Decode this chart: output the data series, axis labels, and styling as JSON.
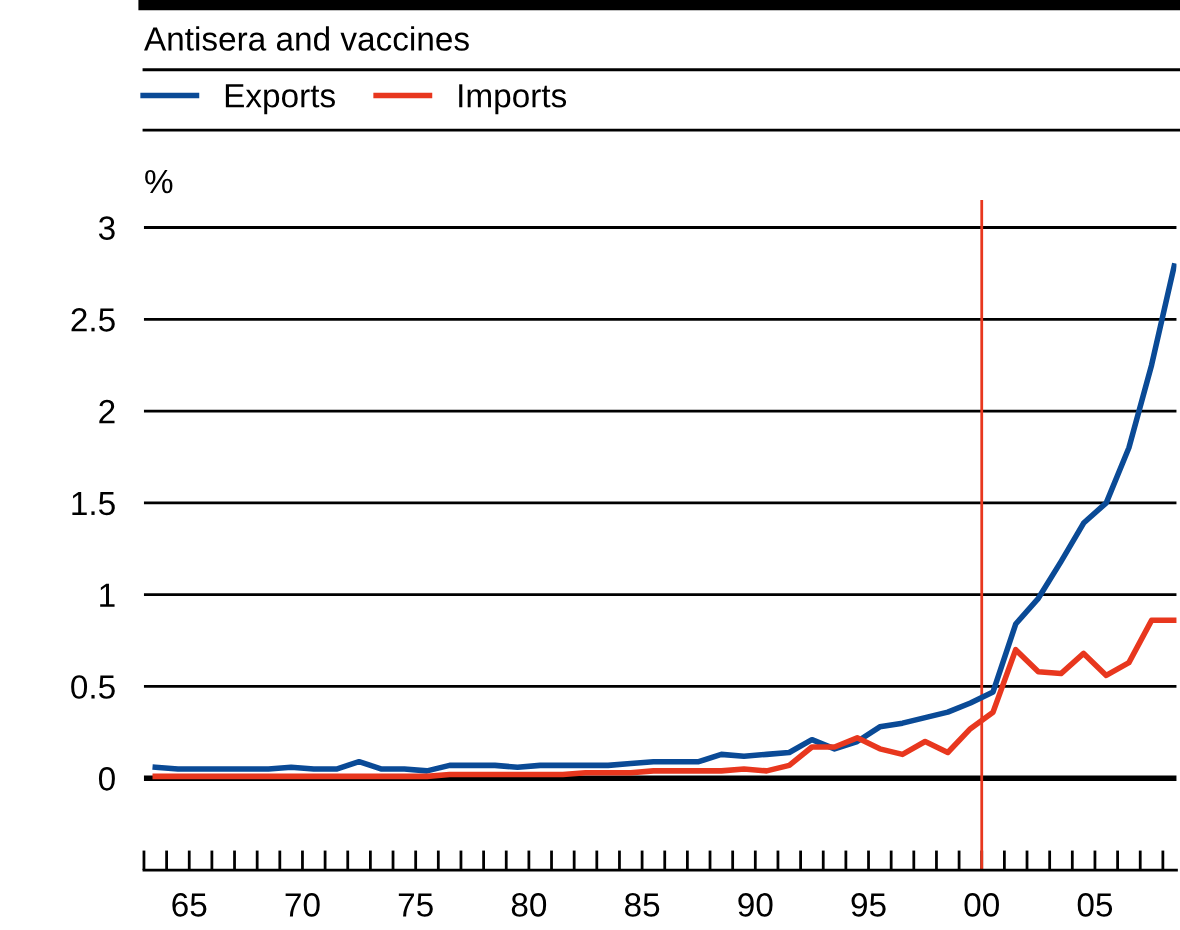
{
  "chart_data": {
    "type": "line",
    "title": "Antisera and vaccines",
    "ylabel": "%",
    "x": [
      1963.5,
      1964.5,
      1965.5,
      1966.5,
      1967.5,
      1968.5,
      1969.5,
      1970.5,
      1971.5,
      1972.5,
      1973.5,
      1974.5,
      1975.5,
      1976.5,
      1977.5,
      1978.5,
      1979.5,
      1980.5,
      1981.5,
      1982.5,
      1983.5,
      1984.5,
      1985.5,
      1986.5,
      1987.5,
      1988.5,
      1989.5,
      1990.5,
      1991.5,
      1992.5,
      1993.5,
      1994.5,
      1995.5,
      1996.5,
      1997.5,
      1998.5,
      1999.5,
      2000.5,
      2001.5,
      2002.5,
      2003.5,
      2004.5,
      2005.5,
      2006.5,
      2007.5,
      2008.5
    ],
    "series": [
      {
        "name": "Exports",
        "color": "#0a4a96",
        "values": [
          0.06,
          0.05,
          0.05,
          0.05,
          0.05,
          0.05,
          0.06,
          0.05,
          0.05,
          0.09,
          0.05,
          0.05,
          0.04,
          0.07,
          0.07,
          0.07,
          0.06,
          0.07,
          0.07,
          0.07,
          0.07,
          0.08,
          0.09,
          0.09,
          0.09,
          0.13,
          0.12,
          0.13,
          0.14,
          0.21,
          0.16,
          0.2,
          0.28,
          0.3,
          0.33,
          0.36,
          0.41,
          0.47,
          0.84,
          0.98,
          1.18,
          1.39,
          1.5,
          1.8,
          2.25,
          2.79
        ]
      },
      {
        "name": "Imports",
        "color": "#e8371e",
        "values": [
          0.01,
          0.01,
          0.01,
          0.01,
          0.01,
          0.01,
          0.01,
          0.01,
          0.01,
          0.01,
          0.01,
          0.01,
          0.01,
          0.02,
          0.02,
          0.02,
          0.02,
          0.02,
          0.02,
          0.03,
          0.03,
          0.03,
          0.04,
          0.04,
          0.04,
          0.04,
          0.05,
          0.04,
          0.07,
          0.17,
          0.17,
          0.22,
          0.16,
          0.13,
          0.2,
          0.14,
          0.27,
          0.36,
          0.7,
          0.58,
          0.57,
          0.68,
          0.56,
          0.63,
          0.86,
          0.86
        ]
      }
    ],
    "xlim": [
      1963,
      2008.6
    ],
    "xticks": [
      {
        "value": 1963,
        "label": null
      },
      {
        "value": 1964,
        "label": null
      },
      {
        "value": 1965,
        "label": "65"
      },
      {
        "value": 1966,
        "label": null
      },
      {
        "value": 1967,
        "label": null
      },
      {
        "value": 1968,
        "label": null
      },
      {
        "value": 1969,
        "label": null
      },
      {
        "value": 1970,
        "label": "70"
      },
      {
        "value": 1971,
        "label": null
      },
      {
        "value": 1972,
        "label": null
      },
      {
        "value": 1973,
        "label": null
      },
      {
        "value": 1974,
        "label": null
      },
      {
        "value": 1975,
        "label": "75"
      },
      {
        "value": 1976,
        "label": null
      },
      {
        "value": 1977,
        "label": null
      },
      {
        "value": 1978,
        "label": null
      },
      {
        "value": 1979,
        "label": null
      },
      {
        "value": 1980,
        "label": "80"
      },
      {
        "value": 1981,
        "label": null
      },
      {
        "value": 1982,
        "label": null
      },
      {
        "value": 1983,
        "label": null
      },
      {
        "value": 1984,
        "label": null
      },
      {
        "value": 1985,
        "label": "85"
      },
      {
        "value": 1986,
        "label": null
      },
      {
        "value": 1987,
        "label": null
      },
      {
        "value": 1988,
        "label": null
      },
      {
        "value": 1989,
        "label": null
      },
      {
        "value": 1990,
        "label": "90"
      },
      {
        "value": 1991,
        "label": null
      },
      {
        "value": 1992,
        "label": null
      },
      {
        "value": 1993,
        "label": null
      },
      {
        "value": 1994,
        "label": null
      },
      {
        "value": 1995,
        "label": "95"
      },
      {
        "value": 1996,
        "label": null
      },
      {
        "value": 1997,
        "label": null
      },
      {
        "value": 1998,
        "label": null
      },
      {
        "value": 1999,
        "label": null
      },
      {
        "value": 2000,
        "label": "00"
      },
      {
        "value": 2001,
        "label": null
      },
      {
        "value": 2002,
        "label": null
      },
      {
        "value": 2003,
        "label": null
      },
      {
        "value": 2004,
        "label": null
      },
      {
        "value": 2005,
        "label": "05"
      },
      {
        "value": 2006,
        "label": null
      },
      {
        "value": 2007,
        "label": null
      },
      {
        "value": 2008,
        "label": null
      }
    ],
    "ylim": [
      -0.5,
      3.15
    ],
    "yticks": [
      0,
      0.5,
      1,
      1.5,
      2,
      2.5,
      3
    ],
    "ref_lines": [
      {
        "axis": "x",
        "value": 2000,
        "label": null,
        "color": "#e8371e"
      }
    ],
    "grid": "y",
    "legend": "top left",
    "line_style": "solid",
    "marker": "none"
  }
}
